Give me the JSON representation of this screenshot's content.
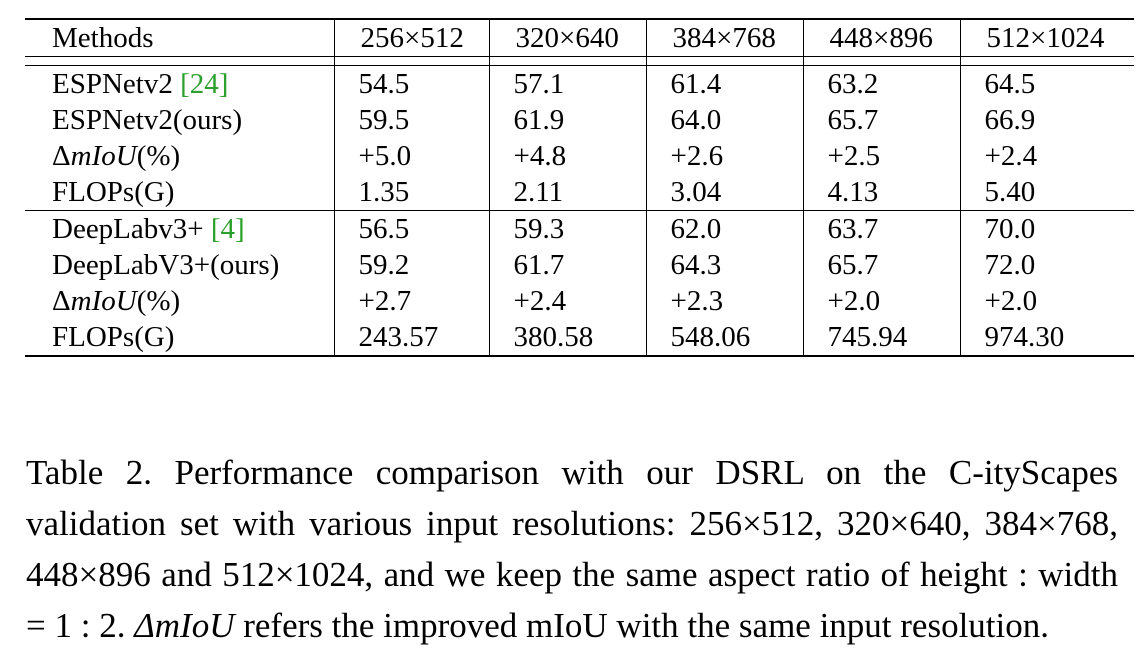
{
  "table": {
    "headers": [
      "Methods",
      "256×512",
      "320×640",
      "384×768",
      "448×896",
      "512×1024"
    ],
    "groups": [
      {
        "rows": [
          {
            "method": "ESPNetv2 ",
            "cite": "[24]",
            "values": [
              "54.5",
              "57.1",
              "61.4",
              "63.2",
              "64.5"
            ],
            "bold": false
          },
          {
            "method": "ESPNetv2(ours)",
            "cite": "",
            "values": [
              "59.5",
              "61.9",
              "64.0",
              "65.7",
              "66.9"
            ],
            "bold": false
          },
          {
            "method": "ΔmIoU(%)",
            "cite": "",
            "values": [
              "+5.0",
              "+4.8",
              "+2.6",
              "+2.5",
              "+2.4"
            ],
            "bold": true
          },
          {
            "method": "FLOPs(G)",
            "cite": "",
            "values": [
              "1.35",
              "2.11",
              "3.04",
              "4.13",
              "5.40"
            ],
            "bold": false
          }
        ]
      },
      {
        "rows": [
          {
            "method": "DeepLabv3+ ",
            "cite": "[4]",
            "values": [
              "56.5",
              "59.3",
              "62.0",
              "63.7",
              "70.0"
            ],
            "bold": false
          },
          {
            "method": "DeepLabV3+(ours)",
            "cite": "",
            "values": [
              "59.2",
              "61.7",
              "64.3",
              "65.7",
              "72.0"
            ],
            "bold": false
          },
          {
            "method": "ΔmIoU(%)",
            "cite": "",
            "values": [
              "+2.7",
              "+2.4",
              "+2.3",
              "+2.0",
              "+2.0"
            ],
            "bold": true
          },
          {
            "method": "FLOPs(G)",
            "cite": "",
            "values": [
              "243.57",
              "380.58",
              "548.06",
              "745.94",
              "974.30"
            ],
            "bold": false
          }
        ]
      }
    ]
  },
  "caption": {
    "text_1": "Table 2. Performance comparison with our DSRL on the C-ityScapes validation set with various input resolutions: 256×512, 320×640, 384×768, 448×896 and 512×1024, and we keep the same aspect ratio of height : width = 1 : 2. ",
    "delta_term": "ΔmIoU",
    "text_2": " refers the improved mIoU with the same input resolution."
  }
}
